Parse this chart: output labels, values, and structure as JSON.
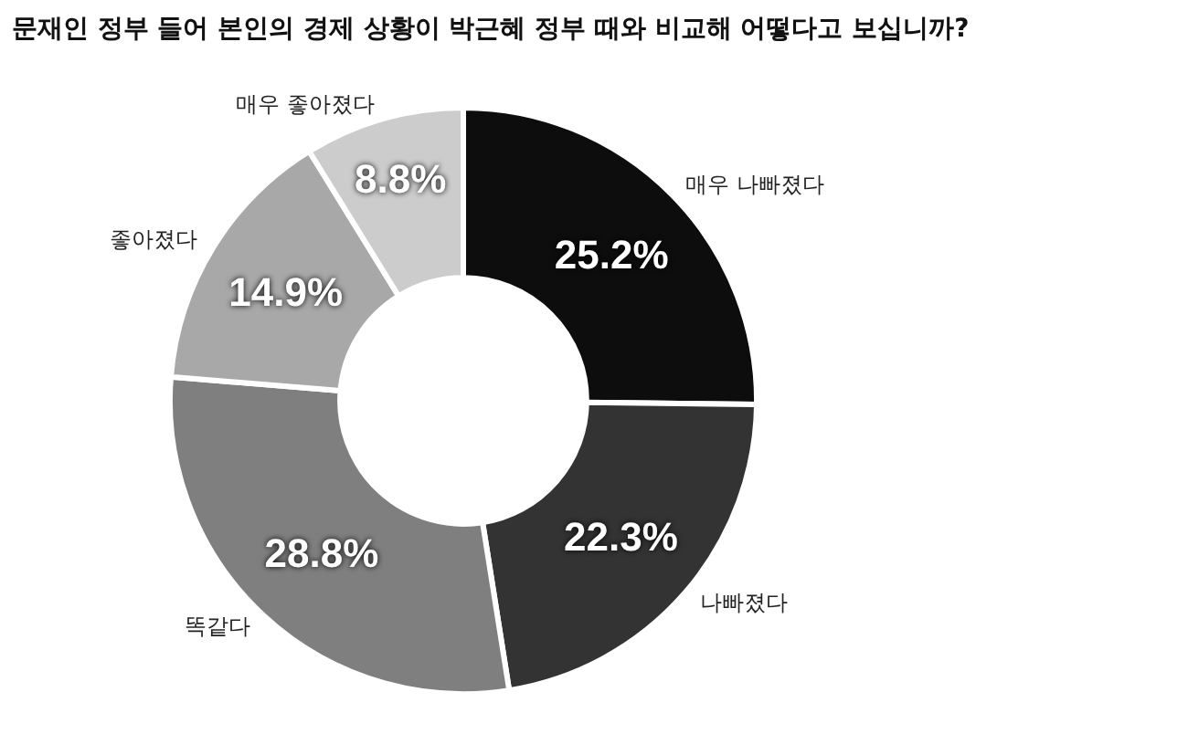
{
  "chart_data": {
    "type": "donut",
    "title": "문재인 정부 들어 본인의 경제 상황이 박근혜 정부 때와 비교해 어떻다고 보십니까?",
    "categories": [
      "매우 나빠졌다",
      "나빠졌다",
      "똑같다",
      "좋아졌다",
      "매우 좋아졌다"
    ],
    "values": [
      25.2,
      22.3,
      28.8,
      14.9,
      8.8
    ],
    "value_labels": [
      "25.2%",
      "22.3%",
      "28.8%",
      "14.9%",
      "8.8%"
    ],
    "colors": [
      "#0d0d0d",
      "#333333",
      "#7f7f7f",
      "#a8a8a8",
      "#cccccc"
    ],
    "legend": false
  }
}
